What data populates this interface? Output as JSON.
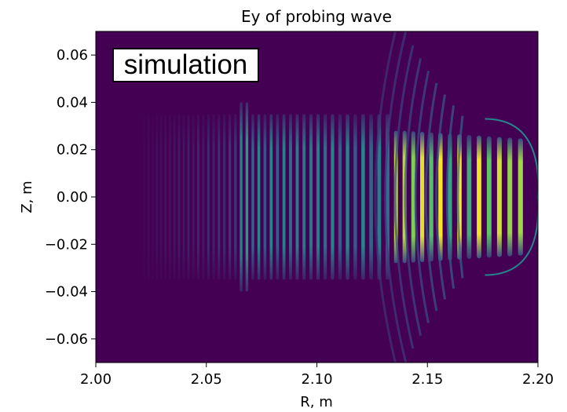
{
  "chart_data": {
    "type": "heatmap",
    "title": "Ey of probing wave",
    "xlabel": "R, m",
    "ylabel": "Z, m",
    "xlim": [
      2.0,
      2.2
    ],
    "ylim": [
      -0.07,
      0.07
    ],
    "xticks": [
      2.0,
      2.05,
      2.1,
      2.15,
      2.2
    ],
    "xtick_labels": [
      "2.00",
      "2.05",
      "2.10",
      "2.15",
      "2.20"
    ],
    "yticks": [
      0.06,
      0.04,
      0.02,
      0.0,
      -0.02,
      -0.04,
      -0.06
    ],
    "ytick_labels": [
      "0.06",
      "0.04",
      "0.02",
      "0.00",
      "−0.02",
      "−0.04",
      "−0.06"
    ],
    "annotation": "simulation",
    "colormap": "viridis",
    "grid": false,
    "background_color": "#440154",
    "field": {
      "max_R": 2.195,
      "focus_R": 2.178,
      "focus_Z": 0.0,
      "regions": [
        {
          "R_start": 2.02,
          "R_end": 2.065,
          "peak_intensity": 0.18,
          "half_height": 0.035
        },
        {
          "R_start": 2.065,
          "R_end": 2.07,
          "peak_intensity": 0.55,
          "half_height": 0.04
        },
        {
          "R_start": 2.07,
          "R_end": 2.135,
          "peak_intensity": 0.45,
          "half_height": 0.035
        },
        {
          "R_start": 2.135,
          "R_end": 2.195,
          "peak_intensity": 1.0,
          "half_height": 0.028
        }
      ]
    }
  }
}
